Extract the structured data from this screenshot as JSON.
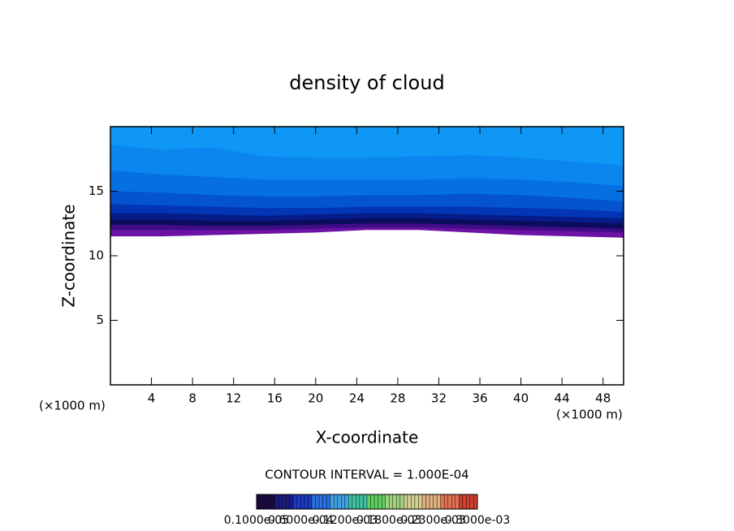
{
  "chart_data": {
    "type": "contour",
    "title": "density of cloud",
    "x_label": "X-coordinate",
    "y_label": "Z-coordinate",
    "x_unit_left": "(×1000 m)",
    "x_unit_right": "(×1000 m)",
    "contour_interval": "CONTOUR INTERVAL = 1.000E-04",
    "xlim": [
      0,
      50
    ],
    "ylim": [
      0,
      20
    ],
    "xticks": [
      4,
      8,
      12,
      16,
      20,
      24,
      28,
      32,
      36,
      40,
      44,
      48
    ],
    "yticks": [
      5,
      10,
      15
    ],
    "x": [
      0,
      5,
      10,
      15,
      20,
      25,
      30,
      35,
      40,
      45,
      50
    ],
    "bands": [
      {
        "color": "#0f97f5",
        "z": [
          20,
          20,
          20,
          20,
          20,
          20,
          20,
          20,
          20,
          20,
          20
        ]
      },
      {
        "color": "#0a86ee",
        "z": [
          18.6,
          18.2,
          18.4,
          17.7,
          17.6,
          17.6,
          17.7,
          17.8,
          17.6,
          17.3,
          17
        ]
      },
      {
        "color": "#0670e2",
        "z": [
          16.6,
          16.3,
          16.1,
          15.9,
          15.9,
          15.9,
          15.9,
          16,
          15.9,
          15.7,
          15.4
        ]
      },
      {
        "color": "#0454d0",
        "z": [
          15,
          14.9,
          14.7,
          14.6,
          14.6,
          14.7,
          14.7,
          14.8,
          14.7,
          14.5,
          14.2
        ]
      },
      {
        "color": "#0236b4",
        "z": [
          14,
          13.9,
          13.8,
          13.7,
          13.7,
          13.8,
          13.8,
          13.8,
          13.7,
          13.6,
          13.4
        ]
      },
      {
        "color": "#061c88",
        "z": [
          13.3,
          13.3,
          13.2,
          13.1,
          13.2,
          13.3,
          13.3,
          13.2,
          13.1,
          13,
          12.9
        ]
      },
      {
        "color": "#0c0c5c",
        "z": [
          12.8,
          12.8,
          12.7,
          12.7,
          12.8,
          12.9,
          12.9,
          12.8,
          12.7,
          12.6,
          12.5
        ]
      },
      {
        "color": "#400c88",
        "z": [
          12.4,
          12.4,
          12.3,
          12.3,
          12.4,
          12.5,
          12.5,
          12.4,
          12.3,
          12.2,
          12.1
        ]
      },
      {
        "color": "#6c12a4",
        "z": [
          12,
          12,
          12,
          12,
          12.1,
          12.2,
          12.2,
          12.1,
          12,
          11.9,
          11.8
        ]
      }
    ],
    "cloud_base": [
      11.5,
      11.5,
      11.6,
      11.7,
      11.8,
      12,
      12,
      11.8,
      11.6,
      11.5,
      11.4
    ],
    "colorbar": {
      "colors": [
        "#1a0a40",
        "#1a1a80",
        "#1a3ac0",
        "#2a70e0",
        "#40a0e0",
        "#40c0a0",
        "#60d060",
        "#a0d080",
        "#d0d090",
        "#e0b080",
        "#e07050",
        "#d04030"
      ],
      "labels": [
        "0.1000e-05",
        "0.6000e-04",
        "0.1200e-03",
        "0.1800e-03",
        "0.2300e-03",
        "0.3000e-03"
      ]
    }
  }
}
